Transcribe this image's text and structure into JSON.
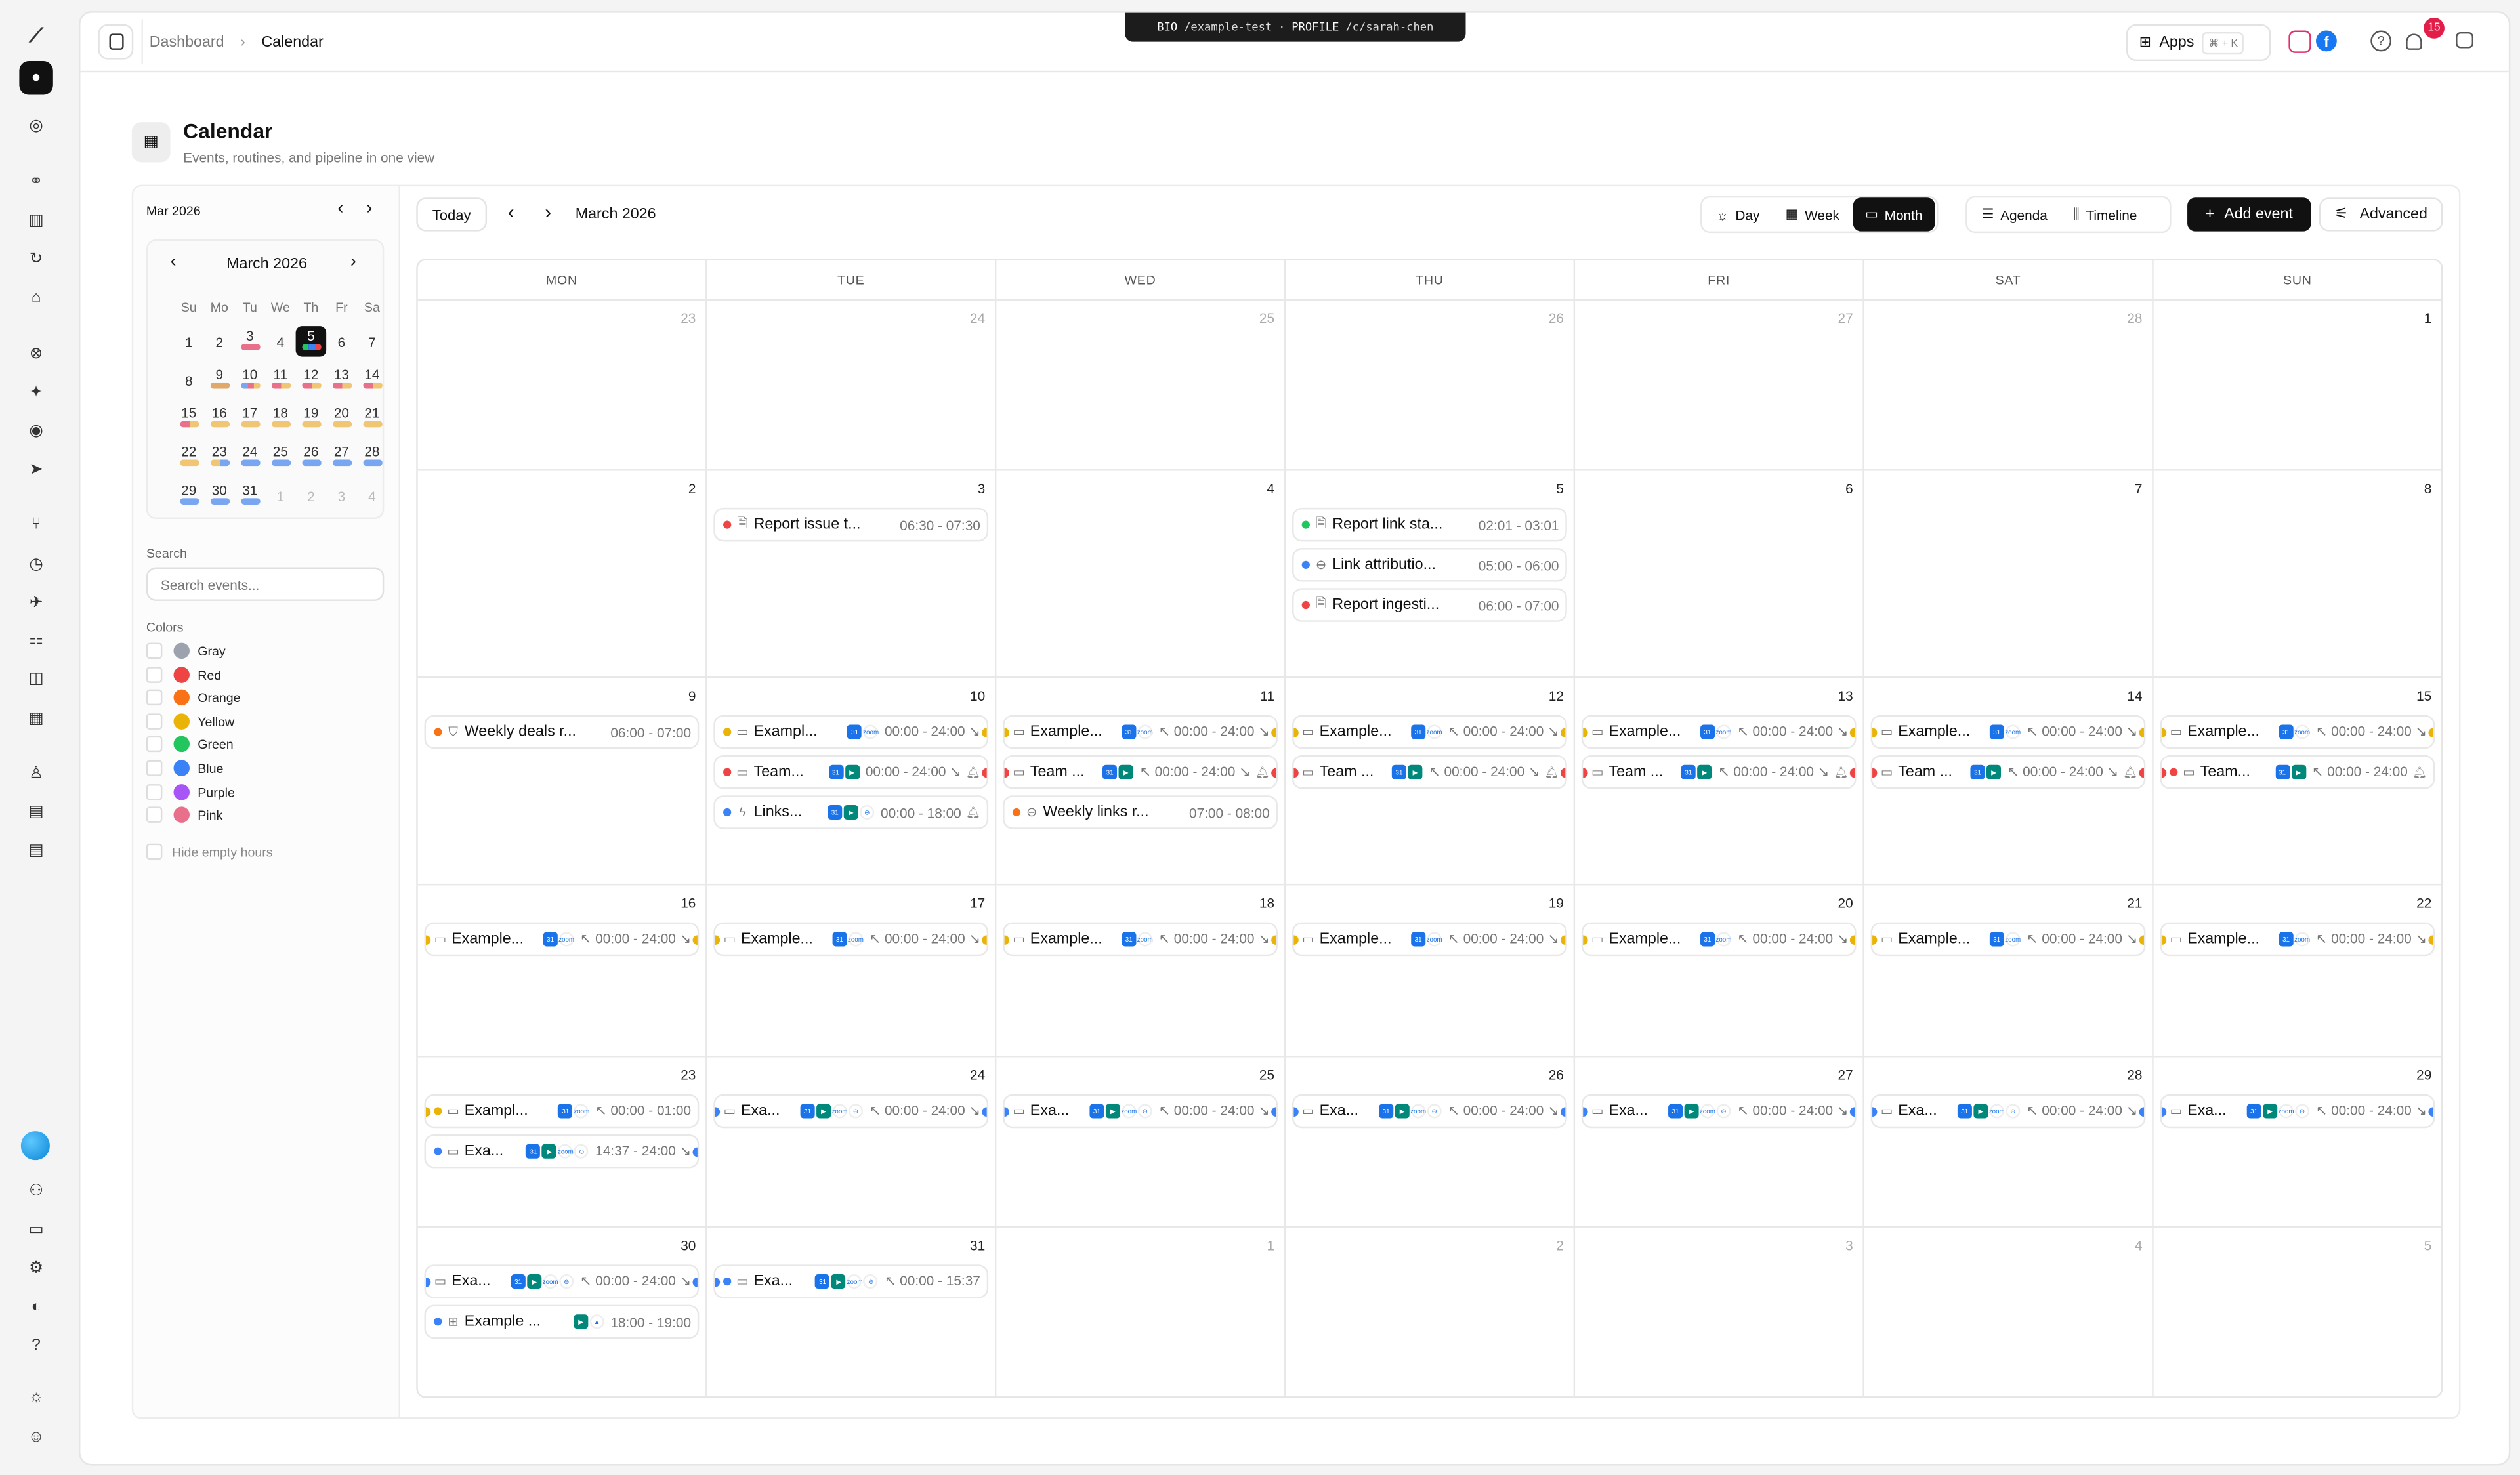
{
  "rail": {
    "icons": [
      "logo-icon",
      "home-icon",
      "dashboard-icon",
      "link-icon",
      "chart-icon",
      "refresh-icon",
      "tag-icon",
      "target-icon",
      "sparkle-icon",
      "user-circle-icon",
      "send-icon",
      "branch-icon",
      "clock-icon",
      "rocket-icon",
      "workflow-icon",
      "camera-icon",
      "calendar-icon",
      "person-icon",
      "briefcase-icon",
      "document-icon"
    ],
    "bottom_icons": [
      "avatar",
      "team-icon",
      "card-icon",
      "settings-icon",
      "notification-icon",
      "help-icon",
      "sun-icon",
      "profile-icon"
    ]
  },
  "header": {
    "breadcrumb": [
      "Dashboard",
      "Calendar"
    ],
    "bio_label": "BIO",
    "bio_path": "/example-test",
    "profile_label": "PROFILE",
    "profile_path": "/c/sarah-chen",
    "apps_label": "Apps",
    "apps_shortcut": "⌘ + K",
    "notification_count": "15"
  },
  "page": {
    "title": "Calendar",
    "subtitle": "Events, routines, and pipeline in one view"
  },
  "sidebar": {
    "month_label": "Mar 2026",
    "mini_title": "March 2026",
    "weekdays": [
      "Su",
      "Mo",
      "Tu",
      "We",
      "Th",
      "Fr",
      "Sa"
    ],
    "mini_weeks": [
      [
        {
          "d": "1"
        },
        {
          "d": "2"
        },
        {
          "d": "3",
          "bars": [
            "#e8708a"
          ]
        },
        {
          "d": "4"
        },
        {
          "d": "5",
          "selected": true,
          "bars": [
            "#22c55e",
            "#3b82f6",
            "#ef4444"
          ]
        },
        {
          "d": "6"
        },
        {
          "d": "7"
        }
      ],
      [
        {
          "d": "8"
        },
        {
          "d": "9",
          "bars": [
            "#e0a86a"
          ]
        },
        {
          "d": "10",
          "bars": [
            "#78a6f0",
            "#e8708a",
            "#f0c674"
          ]
        },
        {
          "d": "11",
          "bars": [
            "#e8708a",
            "#f0c674"
          ]
        },
        {
          "d": "12",
          "bars": [
            "#e8708a",
            "#f0c674"
          ]
        },
        {
          "d": "13",
          "bars": [
            "#e8708a",
            "#f0c674"
          ]
        },
        {
          "d": "14",
          "bars": [
            "#e8708a",
            "#f0c674"
          ]
        }
      ],
      [
        {
          "d": "15",
          "bars": [
            "#e8708a",
            "#f0c674"
          ]
        },
        {
          "d": "16",
          "bars": [
            "#f0c674"
          ]
        },
        {
          "d": "17",
          "bars": [
            "#f0c674"
          ]
        },
        {
          "d": "18",
          "bars": [
            "#f0c674"
          ]
        },
        {
          "d": "19",
          "bars": [
            "#f0c674"
          ]
        },
        {
          "d": "20",
          "bars": [
            "#f0c674"
          ]
        },
        {
          "d": "21",
          "bars": [
            "#f0c674"
          ]
        }
      ],
      [
        {
          "d": "22",
          "bars": [
            "#f0c674"
          ]
        },
        {
          "d": "23",
          "bars": [
            "#f0c674",
            "#78a6f0"
          ]
        },
        {
          "d": "24",
          "bars": [
            "#78a6f0"
          ]
        },
        {
          "d": "25",
          "bars": [
            "#78a6f0"
          ]
        },
        {
          "d": "26",
          "bars": [
            "#78a6f0"
          ]
        },
        {
          "d": "27",
          "bars": [
            "#78a6f0"
          ]
        },
        {
          "d": "28",
          "bars": [
            "#78a6f0"
          ]
        }
      ],
      [
        {
          "d": "29",
          "bars": [
            "#78a6f0"
          ]
        },
        {
          "d": "30",
          "bars": [
            "#78a6f0"
          ]
        },
        {
          "d": "31",
          "bars": [
            "#78a6f0"
          ]
        },
        {
          "d": "1",
          "muted": true
        },
        {
          "d": "2",
          "muted": true
        },
        {
          "d": "3",
          "muted": true
        },
        {
          "d": "4",
          "muted": true
        }
      ]
    ],
    "search_label": "Search",
    "search_placeholder": "Search events...",
    "colors_label": "Colors",
    "colors": [
      {
        "name": "Gray",
        "hex": "#9ca3af"
      },
      {
        "name": "Red",
        "hex": "#ef4444"
      },
      {
        "name": "Orange",
        "hex": "#f97316"
      },
      {
        "name": "Yellow",
        "hex": "#eab308"
      },
      {
        "name": "Green",
        "hex": "#22c55e"
      },
      {
        "name": "Blue",
        "hex": "#3b82f6"
      },
      {
        "name": "Purple",
        "hex": "#a855f7"
      },
      {
        "name": "Pink",
        "hex": "#e8708a"
      }
    ],
    "hide_empty_label": "Hide empty hours"
  },
  "toolbar": {
    "today": "Today",
    "current": "March 2026",
    "views": [
      "Day",
      "Week",
      "Month"
    ],
    "active_view": "Month",
    "views2": [
      "Agenda",
      "Timeline"
    ],
    "add_event": "Add event",
    "advanced": "Advanced"
  },
  "calendar": {
    "weekdays": [
      "MON",
      "TUE",
      "WED",
      "THU",
      "FRI",
      "SAT",
      "SUN"
    ],
    "weeks": [
      [
        {
          "d": "23",
          "muted": true
        },
        {
          "d": "24",
          "muted": true
        },
        {
          "d": "25",
          "muted": true
        },
        {
          "d": "26",
          "muted": true
        },
        {
          "d": "27",
          "muted": true
        },
        {
          "d": "28",
          "muted": true
        },
        {
          "d": "1"
        }
      ],
      [
        {
          "d": "2"
        },
        {
          "d": "3",
          "events": [
            {
              "c": "#ef4444",
              "i": "doc",
              "t": "Report issue t...",
              "tm": "06:30 - 07:30"
            }
          ]
        },
        {
          "d": "4"
        },
        {
          "d": "5",
          "events": [
            {
              "c": "#22c55e",
              "i": "doc",
              "t": "Report link sta...",
              "tm": "02:01 - 03:01"
            },
            {
              "c": "#3b82f6",
              "i": "link",
              "t": "Link attributio...",
              "tm": "05:00 - 06:00"
            },
            {
              "c": "#ef4444",
              "i": "doc",
              "t": "Report ingesti...",
              "tm": "06:00 - 07:00"
            }
          ]
        },
        {
          "d": "6"
        },
        {
          "d": "7"
        },
        {
          "d": "8"
        }
      ],
      [
        {
          "d": "9",
          "events": [
            {
              "c": "#f97316",
              "i": "shield",
              "t": "Weekly deals r...",
              "tm": "06:00 - 07:00"
            }
          ]
        },
        {
          "d": "10",
          "events": [
            {
              "c": "#eab308",
              "i": "cal",
              "t": "Exampl...",
              "apps": [
                "gcal",
                "zoom"
              ],
              "tm": "00:00 - 24:00 ↘",
              "cr": true
            },
            {
              "c": "#ef4444",
              "i": "cal",
              "t": "Team...",
              "apps": [
                "gcal",
                "meet"
              ],
              "tm": "00:00 - 24:00 ↘",
              "bell": true,
              "cr": true
            },
            {
              "c": "#3b82f6",
              "i": "bolt",
              "t": "Links...",
              "apps": [
                "gcal",
                "meet",
                "link"
              ],
              "tm": "00:00 - 18:00",
              "bell": true
            }
          ]
        },
        {
          "d": "11",
          "events": [
            {
              "c": "#eab308",
              "i": "cal",
              "t": "Example...",
              "apps": [
                "gcal",
                "zoom"
              ],
              "tm": "↖ 00:00 - 24:00 ↘",
              "cl": true,
              "cr": true
            },
            {
              "c": "#ef4444",
              "i": "cal",
              "t": "Team ...",
              "apps": [
                "gcal",
                "meet"
              ],
              "tm": "↖ 00:00 - 24:00 ↘",
              "bell": true,
              "cl": true,
              "cr": true
            },
            {
              "c": "#f97316",
              "i": "link",
              "t": "Weekly links r...",
              "tm": "07:00 - 08:00"
            }
          ]
        },
        {
          "d": "12",
          "events": [
            {
              "c": "#eab308",
              "i": "cal",
              "t": "Example...",
              "apps": [
                "gcal",
                "zoom"
              ],
              "tm": "↖ 00:00 - 24:00 ↘",
              "cl": true,
              "cr": true
            },
            {
              "c": "#ef4444",
              "i": "cal",
              "t": "Team ...",
              "apps": [
                "gcal",
                "meet"
              ],
              "tm": "↖ 00:00 - 24:00 ↘",
              "bell": true,
              "cl": true,
              "cr": true
            }
          ]
        },
        {
          "d": "13",
          "events": [
            {
              "c": "#eab308",
              "i": "cal",
              "t": "Example...",
              "apps": [
                "gcal",
                "zoom"
              ],
              "tm": "↖ 00:00 - 24:00 ↘",
              "cl": true,
              "cr": true
            },
            {
              "c": "#ef4444",
              "i": "cal",
              "t": "Team ...",
              "apps": [
                "gcal",
                "meet"
              ],
              "tm": "↖ 00:00 - 24:00 ↘",
              "bell": true,
              "cl": true,
              "cr": true
            }
          ]
        },
        {
          "d": "14",
          "events": [
            {
              "c": "#eab308",
              "i": "cal",
              "t": "Example...",
              "apps": [
                "gcal",
                "zoom"
              ],
              "tm": "↖ 00:00 - 24:00 ↘",
              "cl": true,
              "cr": true
            },
            {
              "c": "#ef4444",
              "i": "cal",
              "t": "Team ...",
              "apps": [
                "gcal",
                "meet"
              ],
              "tm": "↖ 00:00 - 24:00 ↘",
              "bell": true,
              "cl": true,
              "cr": true
            }
          ]
        },
        {
          "d": "15",
          "events": [
            {
              "c": "#eab308",
              "i": "cal",
              "t": "Example...",
              "apps": [
                "gcal",
                "zoom"
              ],
              "tm": "↖ 00:00 - 24:00 ↘",
              "cl": true,
              "cr": true
            },
            {
              "c": "#ef4444",
              "i": "cal",
              "t": "Team...",
              "apps": [
                "gcal",
                "meet"
              ],
              "tm": "↖ 00:00 - 24:00",
              "bell": true,
              "cl": true,
              "dot": true
            }
          ]
        }
      ],
      [
        {
          "d": "16",
          "events": [
            {
              "c": "#eab308",
              "i": "cal",
              "t": "Example...",
              "apps": [
                "gcal",
                "zoom"
              ],
              "tm": "↖ 00:00 - 24:00 ↘",
              "cl": true,
              "cr": true
            }
          ]
        },
        {
          "d": "17",
          "events": [
            {
              "c": "#eab308",
              "i": "cal",
              "t": "Example...",
              "apps": [
                "gcal",
                "zoom"
              ],
              "tm": "↖ 00:00 - 24:00 ↘",
              "cl": true,
              "cr": true
            }
          ]
        },
        {
          "d": "18",
          "events": [
            {
              "c": "#eab308",
              "i": "cal",
              "t": "Example...",
              "apps": [
                "gcal",
                "zoom"
              ],
              "tm": "↖ 00:00 - 24:00 ↘",
              "cl": true,
              "cr": true
            }
          ]
        },
        {
          "d": "19",
          "events": [
            {
              "c": "#eab308",
              "i": "cal",
              "t": "Example...",
              "apps": [
                "gcal",
                "zoom"
              ],
              "tm": "↖ 00:00 - 24:00 ↘",
              "cl": true,
              "cr": true
            }
          ]
        },
        {
          "d": "20",
          "events": [
            {
              "c": "#eab308",
              "i": "cal",
              "t": "Example...",
              "apps": [
                "gcal",
                "zoom"
              ],
              "tm": "↖ 00:00 - 24:00 ↘",
              "cl": true,
              "cr": true
            }
          ]
        },
        {
          "d": "21",
          "events": [
            {
              "c": "#eab308",
              "i": "cal",
              "t": "Example...",
              "apps": [
                "gcal",
                "zoom"
              ],
              "tm": "↖ 00:00 - 24:00 ↘",
              "cl": true,
              "cr": true
            }
          ]
        },
        {
          "d": "22",
          "events": [
            {
              "c": "#eab308",
              "i": "cal",
              "t": "Example...",
              "apps": [
                "gcal",
                "zoom"
              ],
              "tm": "↖ 00:00 - 24:00 ↘",
              "cl": true,
              "cr": true
            }
          ]
        }
      ],
      [
        {
          "d": "23",
          "events": [
            {
              "c": "#eab308",
              "i": "cal",
              "t": "Exampl...",
              "apps": [
                "gcal",
                "zoom"
              ],
              "tm": "↖ 00:00 - 01:00",
              "cl": true,
              "dot": true
            },
            {
              "c": "#3b82f6",
              "i": "cal",
              "t": "Exa...",
              "apps": [
                "gcal",
                "meet",
                "zoom",
                "link"
              ],
              "tm": "14:37 - 24:00 ↘",
              "cr": true
            }
          ]
        },
        {
          "d": "24",
          "events": [
            {
              "c": "#3b82f6",
              "i": "cal",
              "t": "Exa...",
              "apps": [
                "gcal",
                "meet",
                "zoom",
                "link"
              ],
              "tm": "↖ 00:00 - 24:00 ↘",
              "cl": true,
              "cr": true
            }
          ]
        },
        {
          "d": "25",
          "events": [
            {
              "c": "#3b82f6",
              "i": "cal",
              "t": "Exa...",
              "apps": [
                "gcal",
                "meet",
                "zoom",
                "link"
              ],
              "tm": "↖ 00:00 - 24:00 ↘",
              "cl": true,
              "cr": true
            }
          ]
        },
        {
          "d": "26",
          "events": [
            {
              "c": "#3b82f6",
              "i": "cal",
              "t": "Exa...",
              "apps": [
                "gcal",
                "meet",
                "zoom",
                "link"
              ],
              "tm": "↖ 00:00 - 24:00 ↘",
              "cl": true,
              "cr": true
            }
          ]
        },
        {
          "d": "27",
          "events": [
            {
              "c": "#3b82f6",
              "i": "cal",
              "t": "Exa...",
              "apps": [
                "gcal",
                "meet",
                "zoom",
                "link"
              ],
              "tm": "↖ 00:00 - 24:00 ↘",
              "cl": true,
              "cr": true
            }
          ]
        },
        {
          "d": "28",
          "events": [
            {
              "c": "#3b82f6",
              "i": "cal",
              "t": "Exa...",
              "apps": [
                "gcal",
                "meet",
                "zoom",
                "link"
              ],
              "tm": "↖ 00:00 - 24:00 ↘",
              "cl": true,
              "cr": true
            }
          ]
        },
        {
          "d": "29",
          "events": [
            {
              "c": "#3b82f6",
              "i": "cal",
              "t": "Exa...",
              "apps": [
                "gcal",
                "meet",
                "zoom",
                "link"
              ],
              "tm": "↖ 00:00 - 24:00 ↘",
              "cl": true,
              "cr": true
            }
          ]
        }
      ],
      [
        {
          "d": "30",
          "events": [
            {
              "c": "#3b82f6",
              "i": "cal",
              "t": "Exa...",
              "apps": [
                "gcal",
                "meet",
                "zoom",
                "link"
              ],
              "tm": "↖ 00:00 - 24:00 ↘",
              "cl": true,
              "cr": true
            },
            {
              "c": "#3b82f6",
              "i": "grid",
              "t": "Example ...",
              "apps": [
                "meet",
                "drive"
              ],
              "tm": "18:00 - 19:00"
            }
          ]
        },
        {
          "d": "31",
          "events": [
            {
              "c": "#3b82f6",
              "i": "cal",
              "t": "Exa...",
              "apps": [
                "gcal",
                "meet",
                "zoom",
                "link"
              ],
              "tm": "↖ 00:00 - 15:37",
              "cl": true,
              "dot": true
            }
          ]
        },
        {
          "d": "1",
          "muted": true
        },
        {
          "d": "2",
          "muted": true
        },
        {
          "d": "3",
          "muted": true
        },
        {
          "d": "4",
          "muted": true
        },
        {
          "d": "5",
          "muted": true
        }
      ]
    ]
  }
}
